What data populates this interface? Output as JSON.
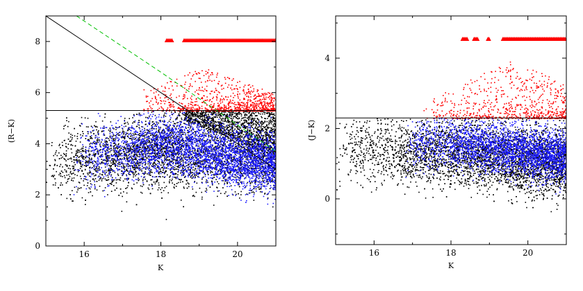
{
  "chart_data": [
    {
      "type": "scatter",
      "xlabel": "K",
      "ylabel": "(R−K)",
      "xlim": [
        15.0,
        21.0
      ],
      "ylim": [
        0,
        9
      ],
      "xticks": [
        16,
        18,
        20
      ],
      "yticks": [
        0,
        2,
        4,
        6,
        8
      ],
      "grid": false,
      "colors": {
        "black": "#000000",
        "blue": "#1a1aff",
        "red": "#ff0000",
        "green": "#00c000"
      },
      "cut_line_y": 5.3,
      "diagonal_black": [
        [
          15.0,
          9.0
        ],
        [
          18.0,
          6.0
        ],
        [
          21.0,
          3.0
        ]
      ],
      "diagonal_green_dashed": [
        [
          15.8,
          9.0
        ],
        [
          18.0,
          6.8
        ],
        [
          21.0,
          3.7
        ]
      ],
      "upper_limit_marker": {
        "shape": "triangle",
        "y": 8.05,
        "x_start": 18.15,
        "x_end": 21.0
      },
      "series": [
        {
          "color": "black",
          "x_range": [
            15.0,
            21.0
          ],
          "y_center_at_k": [
            [
              15.0,
              3.3
            ],
            [
              18.0,
              3.7
            ],
            [
              21.0,
              3.5
            ]
          ],
          "y_spread": 1.4
        },
        {
          "color": "blue",
          "x_range": [
            15.7,
            21.0
          ],
          "y_center_at_k": [
            [
              15.7,
              3.4
            ],
            [
              18.0,
              4.0
            ],
            [
              21.0,
              3.2
            ]
          ],
          "y_spread": 1.1
        },
        {
          "color": "red",
          "x_range": [
            17.5,
            21.0
          ],
          "y_min": 5.3,
          "y_max": 7.0
        }
      ]
    },
    {
      "type": "scatter",
      "xlabel": "K",
      "ylabel": "(J−K)",
      "xlim": [
        15.0,
        21.0
      ],
      "ylim": [
        -1.3,
        5.2
      ],
      "xticks": [
        16,
        18,
        20
      ],
      "yticks": [
        0,
        2,
        4
      ],
      "grid": false,
      "colors": {
        "black": "#000000",
        "blue": "#1a1aff",
        "red": "#ff0000"
      },
      "cut_line_y": 2.3,
      "upper_limit_marker": {
        "shape": "triangle",
        "y": 4.55,
        "x_start": 18.3,
        "x_end": 21.0
      },
      "series": [
        {
          "color": "black",
          "x_range": [
            15.0,
            21.0
          ],
          "y_center_at_k": [
            [
              15.0,
              1.4
            ],
            [
              18.0,
              1.3
            ],
            [
              21.0,
              1.0
            ]
          ],
          "y_spread": 0.9
        },
        {
          "color": "blue",
          "x_range": [
            16.8,
            21.0
          ],
          "y_center_at_k": [
            [
              16.8,
              1.5
            ],
            [
              18.0,
              1.6
            ],
            [
              21.0,
              1.2
            ]
          ],
          "y_spread": 0.7
        },
        {
          "color": "red",
          "x_range": [
            17.2,
            21.0
          ],
          "y_min": 2.3,
          "y_max": 4.0
        }
      ]
    }
  ]
}
